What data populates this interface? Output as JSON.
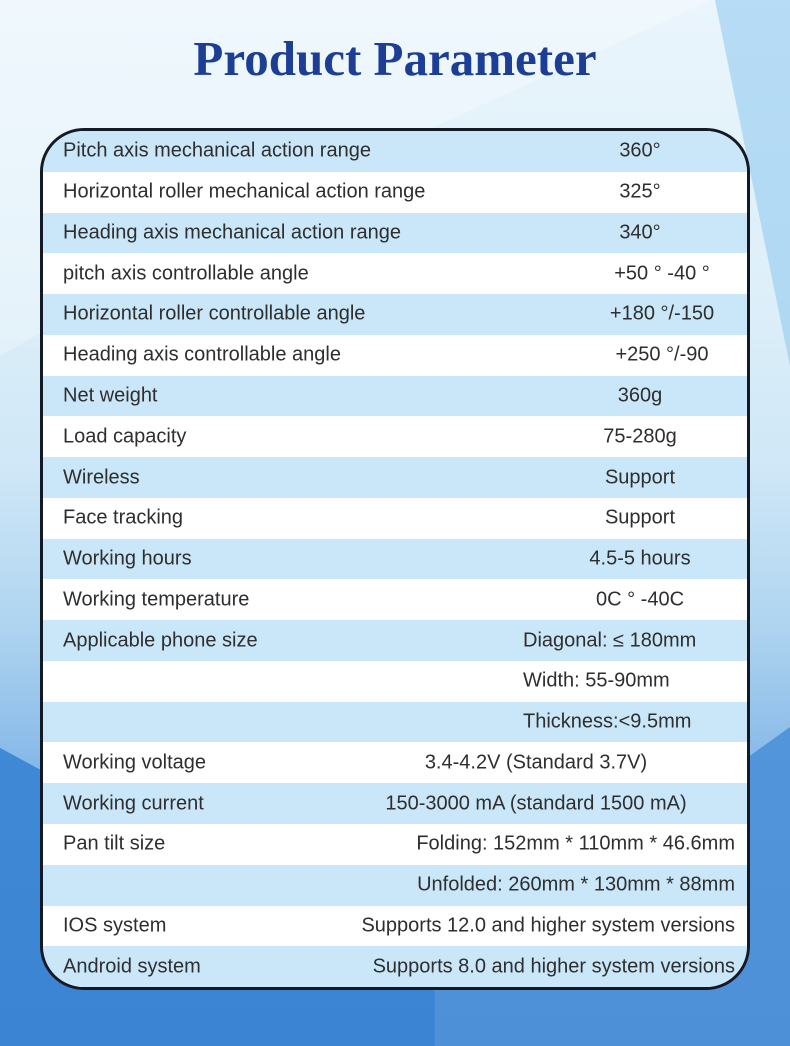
{
  "title": "Product Parameter",
  "table": {
    "rows": [
      {
        "label": "Pitch axis mechanical action range",
        "value": "360°"
      },
      {
        "label": "Horizontal roller mechanical action range",
        "value": "325°"
      },
      {
        "label": "Heading axis mechanical action range",
        "value": "340°"
      },
      {
        "label": "pitch axis controllable angle",
        "value": "+50 ° -40 °"
      },
      {
        "label": "Horizontal roller controllable angle",
        "value": "+180 °/-150"
      },
      {
        "label": "Heading axis controllable angle",
        "value": "+250 °/-90"
      },
      {
        "label": "Net weight",
        "value": "360g"
      },
      {
        "label": "Load capacity",
        "value": "75-280g"
      },
      {
        "label": "Wireless",
        "value": "Support"
      },
      {
        "label": "Face tracking",
        "value": "Support"
      },
      {
        "label": "Working hours",
        "value": "4.5-5 hours"
      },
      {
        "label": "Working temperature",
        "value": "0C ° -40C"
      },
      {
        "label": "Applicable phone size",
        "value": "Diagonal: ≤ 180mm"
      },
      {
        "label": "",
        "value": "Width: 55-90mm"
      },
      {
        "label": "",
        "value": "Thickness:<9.5mm"
      },
      {
        "label": "Working voltage",
        "value": "3.4-4.2V (Standard 3.7V)"
      },
      {
        "label": "Working current",
        "value": "150-3000 mA (standard 1500 mA)"
      },
      {
        "label": "Pan tilt size",
        "value": "Folding: 152mm * 110mm * 46.6mm"
      },
      {
        "label": "",
        "value": "Unfolded: 260mm * 130mm * 88mm"
      },
      {
        "label": "IOS system",
        "value": "Supports 12.0 and higher system versions"
      },
      {
        "label": "Android system",
        "value": "Supports 8.0 and higher system versions"
      }
    ]
  },
  "colors": {
    "title": "#1d3e95",
    "row_highlight": "#c9e7f8",
    "row_plain": "#ffffff",
    "table_border": "#141a24",
    "text": "#2e2e2e",
    "background_light": "#dceef9",
    "background_deep": "#3a84d3"
  }
}
